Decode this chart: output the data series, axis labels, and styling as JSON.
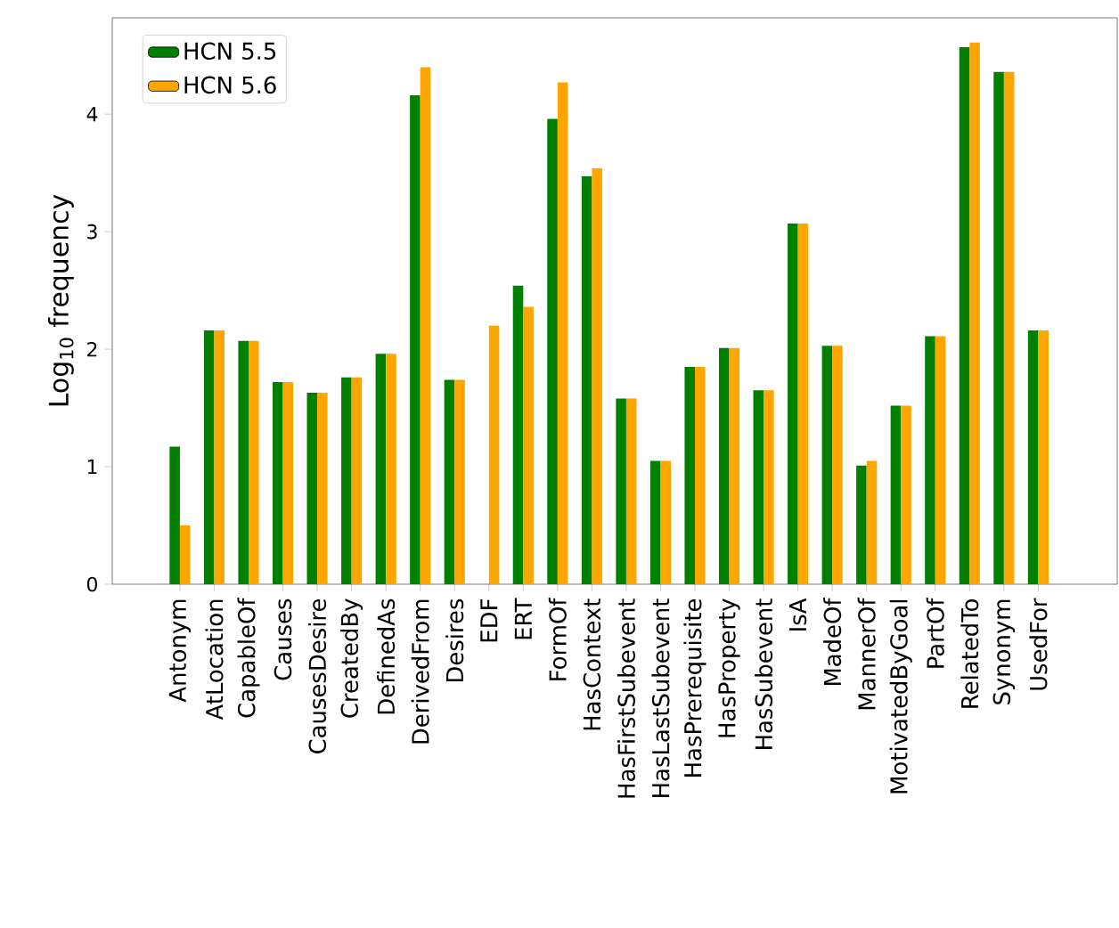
{
  "chart_data": {
    "type": "bar",
    "ylabel": "Log$_{10}$ frequency",
    "categories": [
      "Antonym",
      "AtLocation",
      "CapableOf",
      "Causes",
      "CausesDesire",
      "CreatedBy",
      "DefinedAs",
      "DerivedFrom",
      "Desires",
      "EDF",
      "ERT",
      "FormOf",
      "HasContext",
      "HasFirstSubevent",
      "HasLastSubevent",
      "HasPrerequisite",
      "HasProperty",
      "HasSubevent",
      "IsA",
      "MadeOf",
      "MannerOf",
      "MotivatedByGoal",
      "PartOf",
      "RelatedTo",
      "Synonym",
      "UsedFor"
    ],
    "series": [
      {
        "name": "HCN 5.5",
        "color": "#008000",
        "values": [
          1.17,
          2.16,
          2.07,
          1.72,
          1.63,
          1.76,
          1.96,
          4.16,
          1.74,
          0,
          2.54,
          3.96,
          3.47,
          1.58,
          1.05,
          1.85,
          2.01,
          1.65,
          3.07,
          2.03,
          1.01,
          1.52,
          2.11,
          4.57,
          4.36,
          2.16
        ]
      },
      {
        "name": "HCN 5.6",
        "color": "#ffa500",
        "values": [
          0.5,
          2.16,
          2.07,
          1.72,
          1.63,
          1.76,
          1.96,
          4.4,
          1.74,
          2.2,
          2.36,
          4.27,
          3.54,
          1.58,
          1.05,
          1.85,
          2.01,
          1.65,
          3.07,
          2.03,
          1.05,
          1.52,
          2.11,
          4.61,
          4.36,
          2.16
        ]
      }
    ],
    "ylim": [
      0,
      4.82
    ],
    "yticks": [
      0,
      1,
      2,
      3,
      4
    ],
    "grid": false,
    "legend": "top left"
  }
}
